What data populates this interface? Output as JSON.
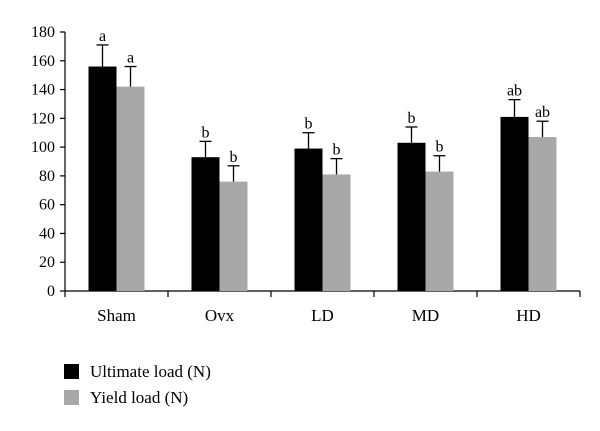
{
  "chart_data": {
    "type": "bar",
    "categories": [
      "Sham",
      "Ovx",
      "LD",
      "MD",
      "HD"
    ],
    "series": [
      {
        "name": "Ultimate load (N)",
        "color": "#000000",
        "values": [
          156,
          93,
          99,
          103,
          121
        ],
        "errors": [
          15,
          11,
          11,
          11,
          12
        ],
        "labels": [
          "a",
          "b",
          "b",
          "b",
          "ab"
        ]
      },
      {
        "name": "Yield load (N)",
        "color": "#a8a8a8",
        "values": [
          142,
          76,
          81,
          83,
          107
        ],
        "errors": [
          14,
          11,
          11,
          11,
          11
        ],
        "labels": [
          "a",
          "b",
          "b",
          "b",
          "ab"
        ]
      }
    ],
    "ylim": [
      0,
      180
    ],
    "yticks": [
      "0",
      "20",
      "40",
      "60",
      "80",
      "100",
      "120",
      "140",
      "160",
      "180"
    ],
    "title": "",
    "xlabel": "",
    "ylabel": "",
    "legend_position": "bottom-left",
    "grid": false
  }
}
